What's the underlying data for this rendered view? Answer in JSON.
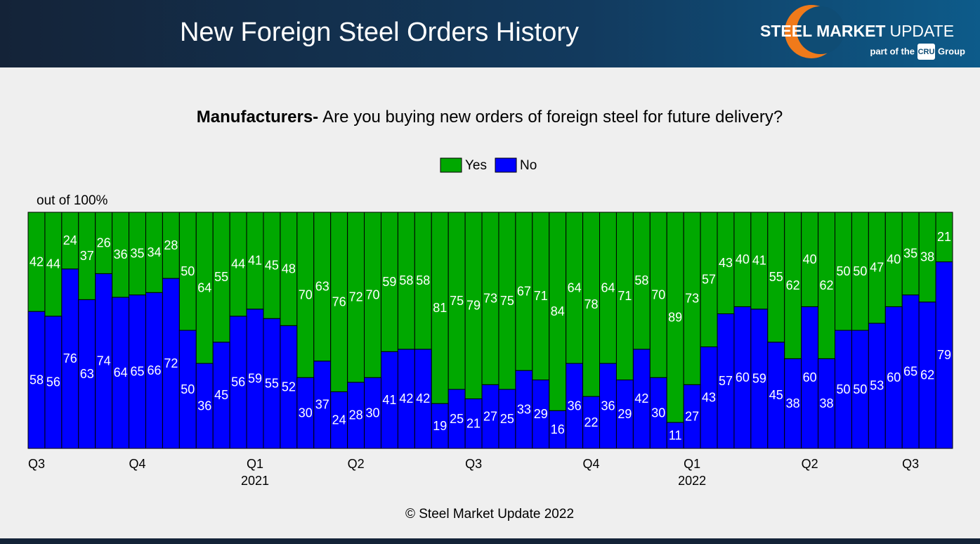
{
  "header": {
    "title": "New Foreign Steel Orders History",
    "logo": {
      "brand_bold": "STEEL MARKET",
      "brand_light": "UPDATE",
      "tagline_prefix": "part of the",
      "badge": "CRU",
      "tagline_suffix": "Group"
    }
  },
  "footer": "© Steel Market Update 2022",
  "chart_data": {
    "type": "stacked_bar",
    "title_bold": "Manufacturers-",
    "title": "Are you buying new orders of foreign steel for future delivery?",
    "ylabel": "out of 100%",
    "ylim": [
      0,
      100
    ],
    "legend": "top",
    "categories": [
      "Q3",
      null,
      null,
      null,
      null,
      null,
      "Q4",
      null,
      null,
      null,
      null,
      null,
      null,
      "Q1",
      null,
      null,
      null,
      null,
      null,
      "Q2",
      null,
      null,
      null,
      null,
      null,
      null,
      "Q3",
      null,
      null,
      null,
      null,
      null,
      null,
      "Q4",
      null,
      null,
      null,
      null,
      null,
      "Q1",
      null,
      null,
      null,
      null,
      null,
      null,
      "Q2",
      null,
      null,
      null,
      null,
      null,
      "Q3",
      null,
      null
    ],
    "years": [
      null,
      null,
      null,
      null,
      null,
      null,
      null,
      null,
      null,
      null,
      null,
      null,
      null,
      "2021",
      null,
      null,
      null,
      null,
      null,
      null,
      null,
      null,
      null,
      null,
      null,
      null,
      null,
      null,
      null,
      null,
      null,
      null,
      null,
      null,
      null,
      null,
      null,
      null,
      null,
      "2022",
      null,
      null,
      null,
      null,
      null,
      null,
      null,
      null,
      null,
      null,
      null,
      null,
      null,
      null,
      null
    ],
    "series": [
      {
        "name": "No",
        "color": "#0000ff",
        "values": [
          58,
          56,
          76,
          63,
          74,
          64,
          65,
          66,
          72,
          50,
          36,
          45,
          56,
          59,
          55,
          52,
          30,
          37,
          24,
          28,
          30,
          41,
          42,
          42,
          19,
          25,
          21,
          27,
          25,
          33,
          29,
          16,
          36,
          22,
          36,
          29,
          42,
          30,
          11,
          27,
          43,
          57,
          60,
          59,
          45,
          38,
          60,
          38,
          50,
          50,
          53,
          60,
          65,
          62,
          79
        ]
      },
      {
        "name": "Yes",
        "color": "#00a800",
        "values": [
          42,
          44,
          24,
          37,
          26,
          36,
          35,
          34,
          28,
          50,
          64,
          55,
          44,
          41,
          45,
          48,
          70,
          63,
          76,
          72,
          70,
          59,
          58,
          58,
          81,
          75,
          79,
          73,
          75,
          67,
          71,
          84,
          64,
          78,
          64,
          71,
          58,
          70,
          89,
          73,
          57,
          43,
          40,
          41,
          55,
          62,
          40,
          62,
          50,
          50,
          47,
          40,
          35,
          38,
          21
        ]
      }
    ]
  }
}
